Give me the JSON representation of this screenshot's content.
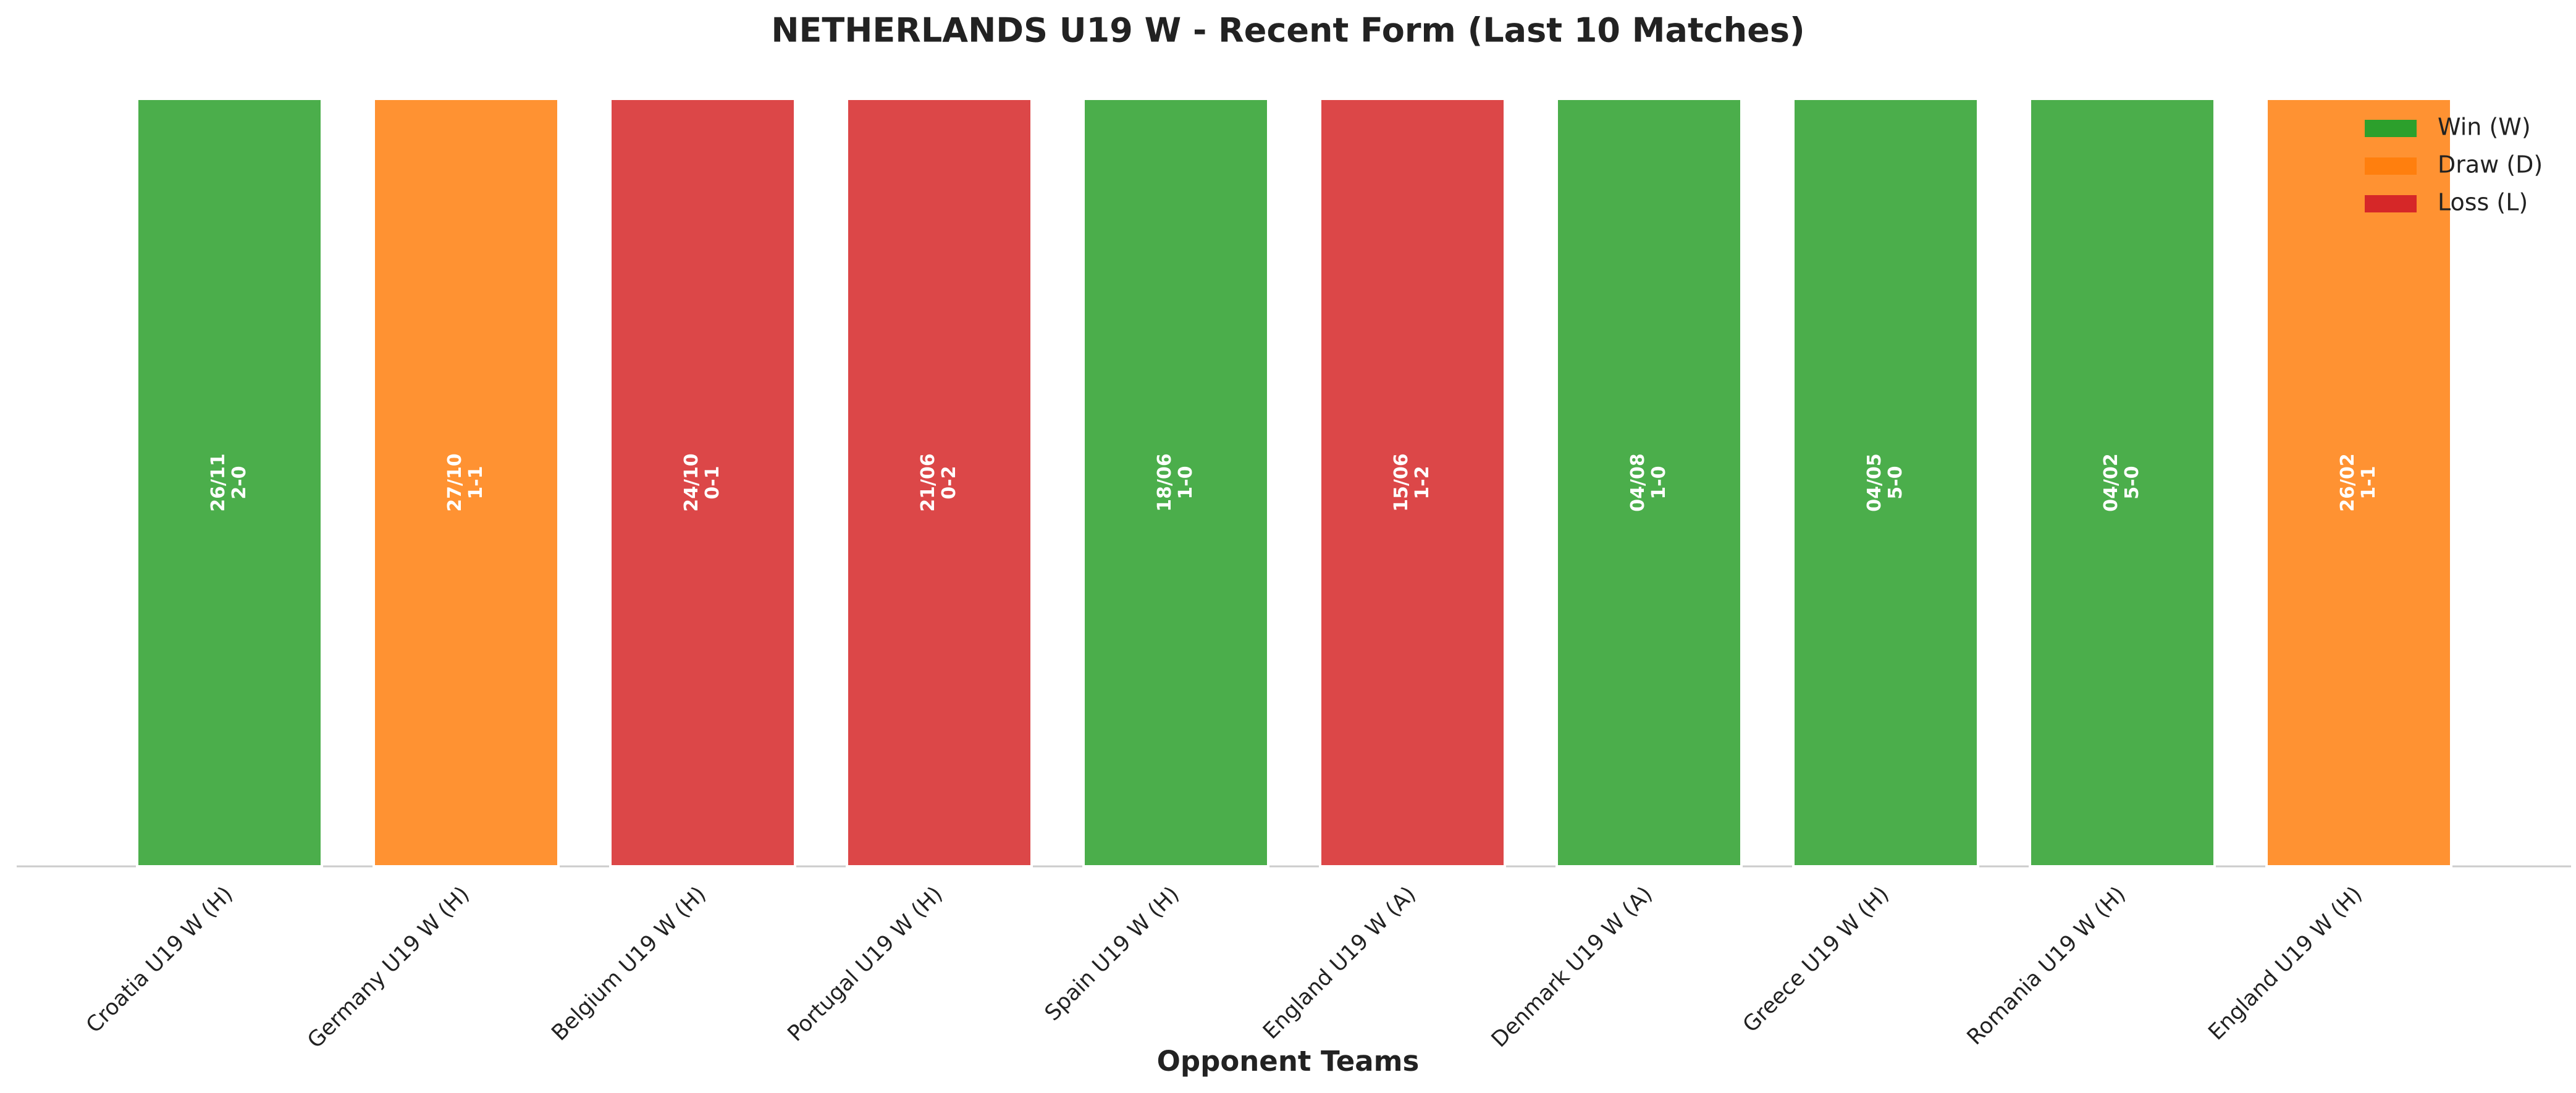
{
  "chart_data": {
    "type": "bar",
    "title": "NETHERLANDS U19 W - Recent Form (Last 10 Matches)",
    "x_label": "Opponent Teams",
    "categories": [
      "Croatia U19 W (H)",
      "Germany U19 W (H)",
      "Belgium U19 W (H)",
      "Portugal U19 W (H)",
      "Spain U19 W (H)",
      "England U19 W (A)",
      "Denmark U19 W (A)",
      "Greece U19 W (H)",
      "Romania U19 W (H)",
      "England U19 W (H)"
    ],
    "values": [
      1,
      1,
      1,
      1,
      1,
      1,
      1,
      1,
      1,
      1
    ],
    "dates": [
      "26/11",
      "27/10",
      "24/10",
      "21/06",
      "18/06",
      "15/06",
      "04/08",
      "04/05",
      "04/02",
      "26/02"
    ],
    "scores": [
      "2-0",
      "1-1",
      "0-1",
      "0-2",
      "1-0",
      "1-2",
      "1-0",
      "5-0",
      "5-0",
      "1-1"
    ],
    "colors": [
      "#2ca02c",
      "#ff7f0e",
      "#d62728",
      "#d62728",
      "#2ca02c",
      "#d62728",
      "#2ca02c",
      "#2ca02c",
      "#2ca02c",
      "#ff7f0e"
    ],
    "ylim": [
      0,
      1
    ],
    "legend_position": "upper right",
    "legend": [
      {
        "name": "Win (W)",
        "color": "#2ca02c"
      },
      {
        "name": "Draw (D)",
        "color": "#ff7f0e"
      },
      {
        "name": "Loss (L)",
        "color": "#d62728"
      }
    ]
  }
}
